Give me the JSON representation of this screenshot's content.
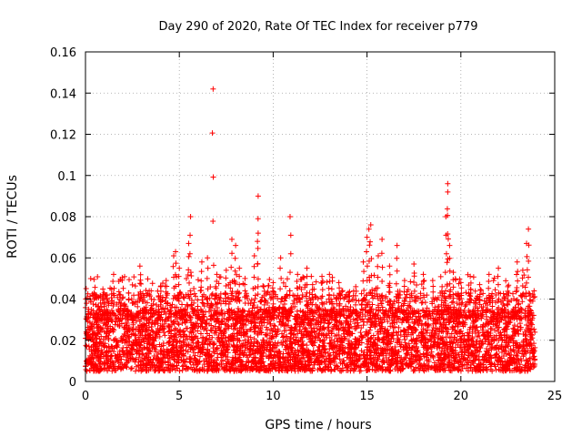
{
  "chart_data": {
    "type": "scatter",
    "title": "Day 290 of 2020, Rate Of TEC Index for receiver p779",
    "xlabel": "GPS time / hours",
    "ylabel": "ROTI / TECUs",
    "xlim": [
      0,
      25
    ],
    "ylim": [
      0,
      0.16
    ],
    "x_ticks": [
      0,
      5,
      10,
      15,
      20,
      25
    ],
    "x_tick_labels": [
      "0",
      "5",
      "10",
      "15",
      "20",
      "25"
    ],
    "y_ticks": [
      0,
      0.02,
      0.04,
      0.06,
      0.08,
      0.1,
      0.12,
      0.14,
      0.16
    ],
    "y_tick_labels": [
      "0",
      "0.02",
      "0.04",
      "0.06",
      "0.08",
      "0.1",
      "0.12",
      "0.14",
      "0.16"
    ],
    "grid": true,
    "marker": "+",
    "color": "#ff0000",
    "x_data_range_hours": [
      0,
      23.95
    ],
    "typical_roti_band": [
      0.005,
      0.035
    ],
    "series": [
      {
        "name": "ROTI",
        "points": [
          [
            0.1,
            0.021
          ],
          [
            0.5,
            0.018
          ],
          [
            1.0,
            0.043
          ],
          [
            1.5,
            0.052
          ],
          [
            2.0,
            0.041
          ],
          [
            2.5,
            0.038
          ],
          [
            2.9,
            0.056
          ],
          [
            3.5,
            0.044
          ],
          [
            4.0,
            0.046
          ],
          [
            4.3,
            0.049
          ],
          [
            4.7,
            0.061
          ],
          [
            4.8,
            0.063
          ],
          [
            5.0,
            0.055
          ],
          [
            5.5,
            0.067
          ],
          [
            5.6,
            0.08
          ],
          [
            6.2,
            0.058
          ],
          [
            6.5,
            0.06
          ],
          [
            6.8,
            0.142
          ],
          [
            7.0,
            0.052
          ],
          [
            7.5,
            0.054
          ],
          [
            7.8,
            0.069
          ],
          [
            8.0,
            0.066
          ],
          [
            8.2,
            0.055
          ],
          [
            8.5,
            0.05
          ],
          [
            9.0,
            0.061
          ],
          [
            9.2,
            0.072
          ],
          [
            9.2,
            0.09
          ],
          [
            9.5,
            0.046
          ],
          [
            10.0,
            0.048
          ],
          [
            10.4,
            0.06
          ],
          [
            10.9,
            0.08
          ],
          [
            11.3,
            0.052
          ],
          [
            11.8,
            0.055
          ],
          [
            12.1,
            0.047
          ],
          [
            12.6,
            0.051
          ],
          [
            13.0,
            0.052
          ],
          [
            13.5,
            0.048
          ],
          [
            14.0,
            0.043
          ],
          [
            14.4,
            0.046
          ],
          [
            14.8,
            0.058
          ],
          [
            15.0,
            0.07
          ],
          [
            15.1,
            0.074
          ],
          [
            15.2,
            0.076
          ],
          [
            15.6,
            0.061
          ],
          [
            15.8,
            0.069
          ],
          [
            16.2,
            0.056
          ],
          [
            16.6,
            0.066
          ],
          [
            17.0,
            0.049
          ],
          [
            17.5,
            0.057
          ],
          [
            18.0,
            0.052
          ],
          [
            18.5,
            0.049
          ],
          [
            19.0,
            0.046
          ],
          [
            19.2,
            0.08
          ],
          [
            19.3,
            0.092
          ],
          [
            19.3,
            0.096
          ],
          [
            19.4,
            0.066
          ],
          [
            19.6,
            0.053
          ],
          [
            20.0,
            0.048
          ],
          [
            20.5,
            0.051
          ],
          [
            21.0,
            0.047
          ],
          [
            21.5,
            0.052
          ],
          [
            22.0,
            0.055
          ],
          [
            22.5,
            0.046
          ],
          [
            23.0,
            0.058
          ],
          [
            23.3,
            0.054
          ],
          [
            23.5,
            0.067
          ],
          [
            23.6,
            0.074
          ],
          [
            23.9,
            0.044
          ]
        ]
      }
    ]
  }
}
